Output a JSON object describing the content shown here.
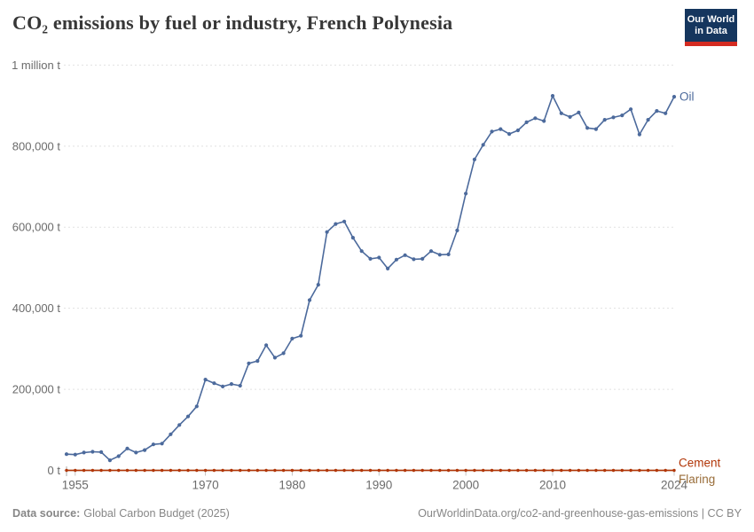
{
  "header": {
    "title": "CO₂ emissions by fuel or industry, French Polynesia",
    "logo": {
      "line1": "Our World",
      "line2": "in Data"
    }
  },
  "chart_data": {
    "type": "line",
    "title": "CO₂ emissions by fuel or industry, French Polynesia",
    "unit": "tonnes",
    "grid": "dashed horizontal gridlines",
    "legend_position": "series labels at right end of lines",
    "ylim": [
      0,
      1000000
    ],
    "xlim": [
      1954,
      2024
    ],
    "x": [
      1954,
      1955,
      1956,
      1957,
      1958,
      1959,
      1960,
      1961,
      1962,
      1963,
      1964,
      1965,
      1966,
      1967,
      1968,
      1969,
      1970,
      1971,
      1972,
      1973,
      1974,
      1975,
      1976,
      1977,
      1978,
      1979,
      1980,
      1981,
      1982,
      1983,
      1984,
      1985,
      1986,
      1987,
      1988,
      1989,
      1990,
      1991,
      1992,
      1993,
      1994,
      1995,
      1996,
      1997,
      1998,
      1999,
      2000,
      2001,
      2002,
      2003,
      2004,
      2005,
      2006,
      2007,
      2008,
      2009,
      2010,
      2011,
      2012,
      2013,
      2014,
      2015,
      2016,
      2017,
      2018,
      2019,
      2020,
      2021,
      2022,
      2023,
      2024
    ],
    "series": [
      {
        "name": "Oil",
        "color": "#4C6A9C",
        "markers": true,
        "values": [
          40000,
          39000,
          44000,
          46000,
          45000,
          25000,
          35000,
          54000,
          44000,
          50000,
          64000,
          66000,
          89000,
          112000,
          133000,
          158000,
          224000,
          215000,
          207000,
          213000,
          209000,
          264000,
          270000,
          309000,
          278000,
          289000,
          325000,
          332000,
          420000,
          458000,
          588000,
          608000,
          614000,
          574000,
          541000,
          522000,
          525000,
          498000,
          520000,
          531000,
          521000,
          522000,
          541000,
          532000,
          533000,
          592000,
          683000,
          767000,
          803000,
          836000,
          842000,
          830000,
          839000,
          859000,
          869000,
          862000,
          924000,
          881000,
          872000,
          883000,
          845000,
          842000,
          865000,
          871000,
          876000,
          891000,
          829000,
          865000,
          887000,
          881000,
          922000
        ]
      },
      {
        "name": "Cement",
        "color": "#B13507",
        "markers": true,
        "constant_value": 0,
        "values_note": "flat at ~0 t for all years 1954-2024 (plotted on the zero line)"
      },
      {
        "name": "Flaring",
        "color": "#996D39",
        "markers": false,
        "constant_value": 0,
        "values_note": "flat at ~0 t for all years 1954-2024 (hidden under Cement line)"
      }
    ],
    "y_axis": {
      "ticks": [
        {
          "value": 0,
          "label": "0 t"
        },
        {
          "value": 200000,
          "label": "200,000 t"
        },
        {
          "value": 400000,
          "label": "400,000 t"
        },
        {
          "value": 600000,
          "label": "600,000 t"
        },
        {
          "value": 800000,
          "label": "800,000 t"
        },
        {
          "value": 1000000,
          "label": "1 million t"
        }
      ]
    },
    "x_axis": {
      "ticks": [
        {
          "value": 1955,
          "label": "1955"
        },
        {
          "value": 1970,
          "label": "1970"
        },
        {
          "value": 1980,
          "label": "1980"
        },
        {
          "value": 1990,
          "label": "1990"
        },
        {
          "value": 2000,
          "label": "2000"
        },
        {
          "value": 2010,
          "label": "2010"
        },
        {
          "value": 2024,
          "label": "2024"
        }
      ]
    }
  },
  "footer": {
    "data_source_label": "Data source:",
    "data_source_value": "Global Carbon Budget (2025)",
    "credit": "OurWorldinData.org/co2-and-greenhouse-gas-emissions | CC BY"
  },
  "colors": {
    "oil": "#4C6A9C",
    "cement": "#B13507",
    "flaring": "#996D39",
    "gridline": "#e1e1e1",
    "axis_text": "#6b6b6b",
    "footer_text": "#878787",
    "title_text": "#373737",
    "logo_bg": "#15365E",
    "logo_bar": "#D42B21"
  }
}
